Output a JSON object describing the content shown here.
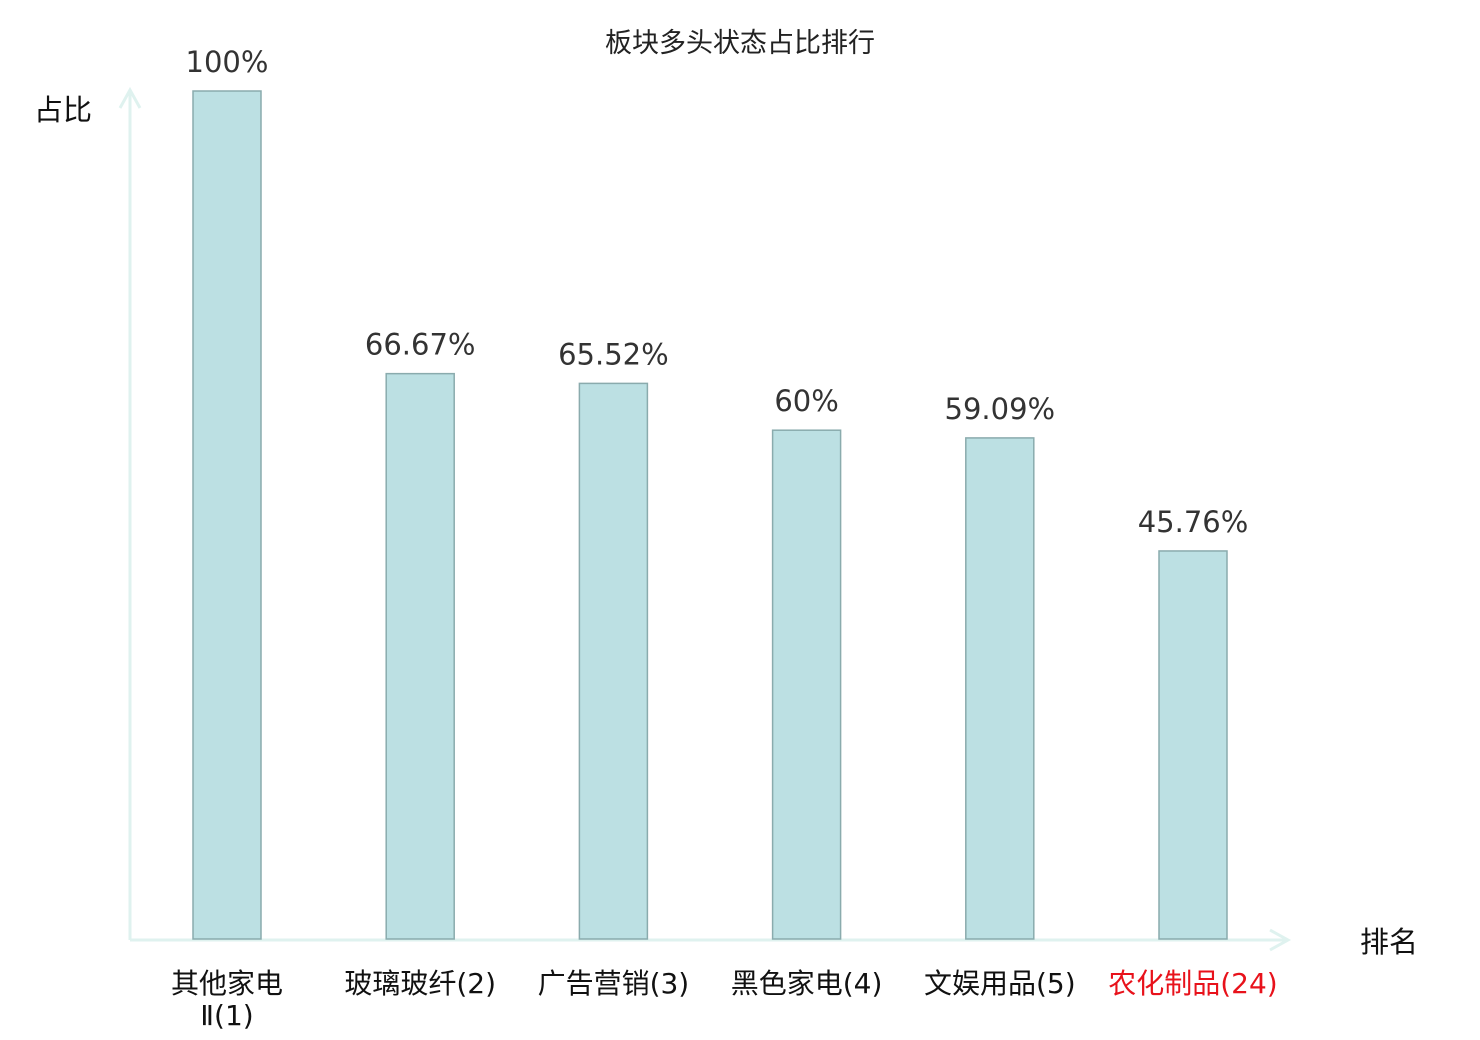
{
  "chart_data": {
    "type": "bar",
    "title": "板块多头状态占比排行",
    "xlabel": "排名",
    "ylabel": "占比",
    "categories": [
      [
        "其他家电",
        "Ⅱ(1)"
      ],
      [
        "玻璃玻纤(2)"
      ],
      [
        "广告营销(3)"
      ],
      [
        "黑色家电(4)"
      ],
      [
        "文娱用品(5)"
      ],
      [
        "农化制品(24)"
      ]
    ],
    "values": [
      100,
      66.67,
      65.52,
      60,
      59.09,
      45.76
    ],
    "data_labels": [
      "100%",
      "66.67%",
      "65.52%",
      "60%",
      "59.09%",
      "45.76%"
    ],
    "highlight_index": 5,
    "ylim": [
      0,
      100
    ],
    "grid": false,
    "colors": {
      "bar": "#bce0e3",
      "bar_border": "#8aabad",
      "axis": "#dff2ef",
      "highlight_text": "#e8121b",
      "text": "#111111"
    }
  }
}
